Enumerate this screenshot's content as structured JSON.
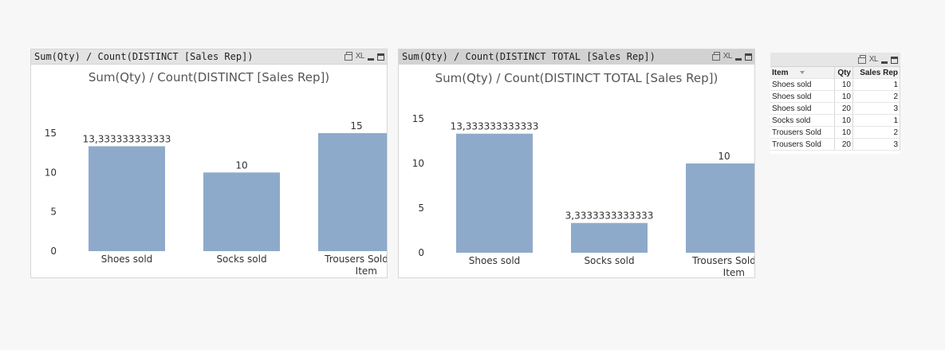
{
  "charts": [
    {
      "caption": "Sum(Qty) / Count(DISTINCT [Sales Rep])",
      "xl_label": "XL"
    },
    {
      "caption": "Sum(Qty) / Count(DISTINCT TOTAL   [Sales Rep])",
      "xl_label": "XL"
    }
  ],
  "chart_data": [
    {
      "type": "bar",
      "title": "Sum(Qty) / Count(DISTINCT [Sales Rep])",
      "categories": [
        "Shoes sold",
        "Socks sold",
        "Trousers Sold"
      ],
      "values": [
        13.333333333333,
        10,
        15
      ],
      "data_labels": [
        "13,333333333333",
        "10",
        "15"
      ],
      "xlabel": "Item",
      "ylabel": "",
      "ylim": [
        0,
        15
      ],
      "yticks": [
        0,
        5,
        10,
        15
      ],
      "bar_color": "#8eaacb",
      "grid": false,
      "legend": "none"
    },
    {
      "type": "bar",
      "title": "Sum(Qty) / Count(DISTINCT TOTAL  [Sales Rep])",
      "categories": [
        "Shoes sold",
        "Socks sold",
        "Trousers Sold"
      ],
      "values": [
        13.333333333333,
        3.3333333333333,
        10
      ],
      "data_labels": [
        "13,333333333333",
        "3,3333333333333",
        "10"
      ],
      "xlabel": "Item",
      "ylabel": "",
      "ylim": [
        0,
        15
      ],
      "yticks": [
        0,
        5,
        10,
        15
      ],
      "bar_color": "#8eaacb",
      "grid": false,
      "legend": "none"
    }
  ],
  "table": {
    "xl_label": "XL",
    "headers": [
      "Item",
      "Qty",
      "Sales Rep"
    ],
    "rows": [
      [
        "Shoes sold",
        "10",
        "1"
      ],
      [
        "Shoes sold",
        "10",
        "2"
      ],
      [
        "Shoes sold",
        "20",
        "3"
      ],
      [
        "Socks sold",
        "10",
        "1"
      ],
      [
        "Trousers Sold",
        "10",
        "2"
      ],
      [
        "Trousers Sold",
        "20",
        "3"
      ]
    ]
  }
}
